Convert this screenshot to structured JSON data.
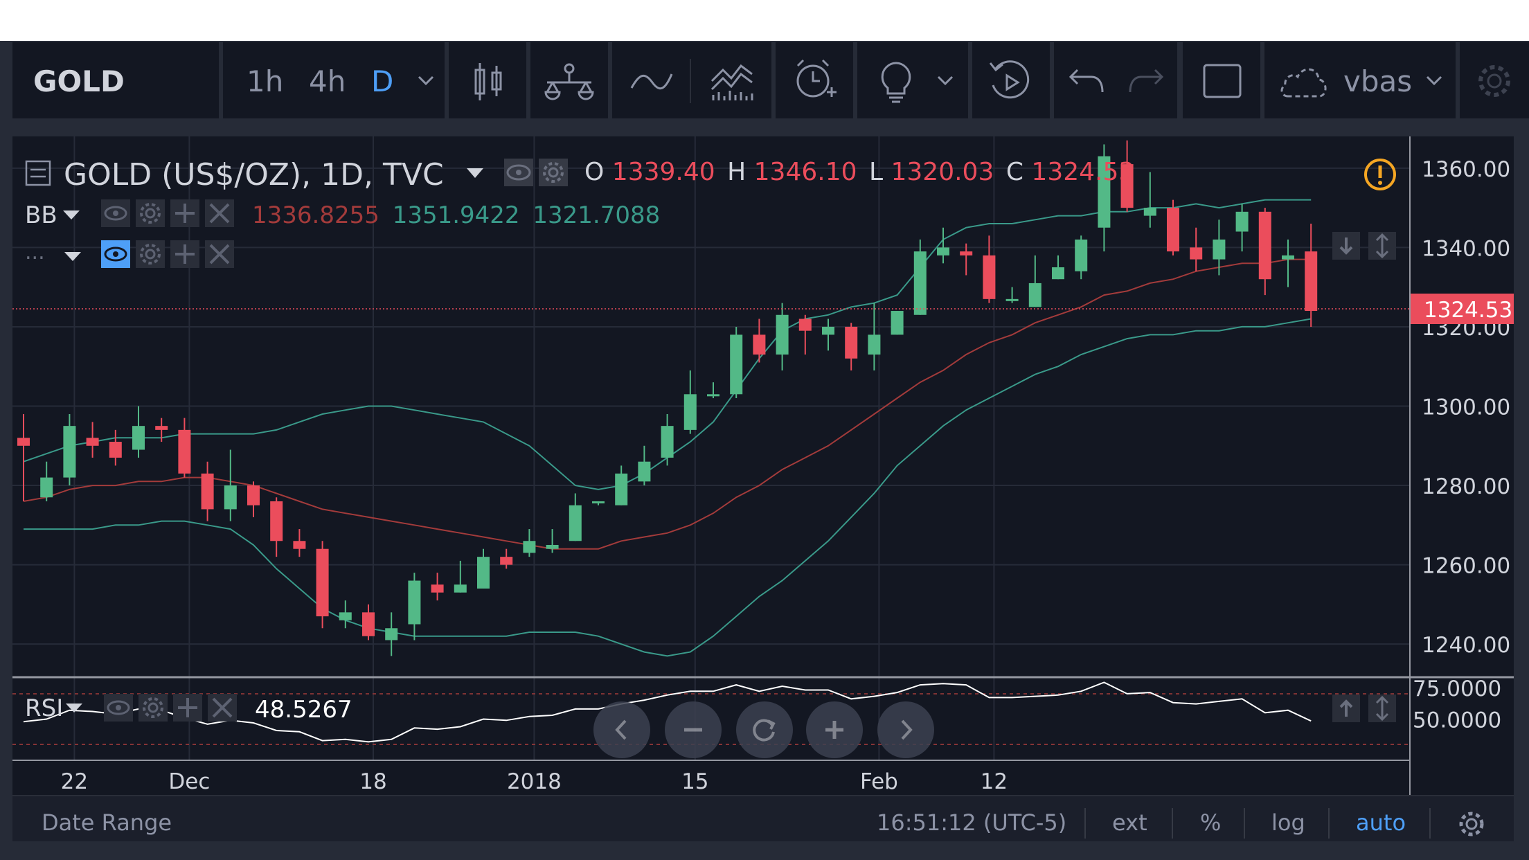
{
  "toolbar": {
    "symbol": "GOLD",
    "intervals": [
      "1h",
      "4h",
      "D"
    ],
    "active_interval": "D",
    "layout_name": "vbas",
    "icons": [
      "chevron-down-icon",
      "candles-icon",
      "compare-icon",
      "indicators-icon",
      "templates-icon",
      "alert-icon",
      "idea-icon",
      "replay-icon",
      "undo-icon",
      "redo-icon",
      "fullscreen-icon",
      "cloud-icon",
      "gear-icon"
    ]
  },
  "legend": {
    "title": "GOLD (US$/OZ), 1D, TVC",
    "ohlc": {
      "o_label": "O",
      "o": "1339.40",
      "h_label": "H",
      "h": "1346.10",
      "l_label": "L",
      "l": "1320.03",
      "c_label": "C",
      "c": "1324.53"
    },
    "bb_label": "BB",
    "bb_values": [
      "1336.8255",
      "1351.9422",
      "1321.7088"
    ],
    "dots": "...",
    "rsi_label": "RSI",
    "rsi_value": "48.5267"
  },
  "price_axis": {
    "ticks": [
      "1360.00",
      "1340.00",
      "1320.00",
      "1300.00",
      "1280.00",
      "1260.00",
      "1240.00"
    ],
    "last_price": "1324.53"
  },
  "rsi_axis": {
    "ticks": [
      "75.0000",
      "50.0000"
    ]
  },
  "time_axis": {
    "labels": [
      "22",
      "Dec",
      "18",
      "2018",
      "15",
      "Feb",
      "12"
    ]
  },
  "status_bar": {
    "date_range": "Date Range",
    "time": "16:51:12",
    "timezone": "(UTC-5)",
    "ext": "ext",
    "percent": "%",
    "log": "log",
    "auto": "auto"
  },
  "colors": {
    "up": "#53b987",
    "down": "#eb4d5c",
    "bg": "#131722",
    "accent": "#4e9ff7",
    "orange": "#f5a623"
  },
  "chart_data": {
    "type": "candlestick",
    "title": "GOLD (US$/OZ), 1D, TVC",
    "ylim": [
      1232,
      1368
    ],
    "candles": [
      [
        1292,
        1290,
        1298,
        1276
      ],
      [
        1277,
        1282,
        1286,
        1276
      ],
      [
        1282,
        1295,
        1298,
        1280
      ],
      [
        1292,
        1290,
        1296,
        1287
      ],
      [
        1291,
        1287,
        1294,
        1285
      ],
      [
        1289,
        1295,
        1300,
        1287
      ],
      [
        1295,
        1294,
        1297,
        1291
      ],
      [
        1294,
        1283,
        1297,
        1282
      ],
      [
        1283,
        1274,
        1286,
        1271
      ],
      [
        1274,
        1280,
        1289,
        1271
      ],
      [
        1280,
        1275,
        1281,
        1272
      ],
      [
        1276,
        1266,
        1277,
        1262
      ],
      [
        1266,
        1264,
        1269,
        1262
      ],
      [
        1264,
        1247,
        1266,
        1244
      ],
      [
        1246,
        1248,
        1251,
        1244
      ],
      [
        1248,
        1242,
        1250,
        1241
      ],
      [
        1241,
        1244,
        1248,
        1237
      ],
      [
        1245,
        1256,
        1258,
        1241
      ],
      [
        1255,
        1253,
        1258,
        1251
      ],
      [
        1253,
        1255,
        1261,
        1253
      ],
      [
        1254,
        1262,
        1264,
        1254
      ],
      [
        1262,
        1260,
        1264,
        1259
      ],
      [
        1263,
        1266,
        1269,
        1262
      ],
      [
        1264,
        1265,
        1269,
        1263
      ],
      [
        1266,
        1275,
        1278,
        1266
      ],
      [
        1276,
        1276,
        1276,
        1275
      ],
      [
        1275,
        1283,
        1285,
        1275
      ],
      [
        1281,
        1286,
        1290,
        1280
      ],
      [
        1287,
        1295,
        1298,
        1285
      ],
      [
        1294,
        1303,
        1309,
        1293
      ],
      [
        1303,
        1303,
        1306,
        1302
      ],
      [
        1303,
        1318,
        1320,
        1302
      ],
      [
        1318,
        1313,
        1322,
        1311
      ],
      [
        1313,
        1323,
        1326,
        1309
      ],
      [
        1322,
        1319,
        1323,
        1313
      ],
      [
        1318,
        1320,
        1322,
        1314
      ],
      [
        1320,
        1312,
        1321,
        1309
      ],
      [
        1313,
        1318,
        1326,
        1309
      ],
      [
        1318,
        1324,
        1324,
        1318
      ],
      [
        1323,
        1339,
        1342,
        1323
      ],
      [
        1338,
        1340,
        1345,
        1336
      ],
      [
        1339,
        1338,
        1341,
        1333
      ],
      [
        1338,
        1327,
        1343,
        1326
      ],
      [
        1327,
        1327,
        1330,
        1326
      ],
      [
        1325,
        1331,
        1338,
        1325
      ],
      [
        1332,
        1335,
        1338,
        1332
      ],
      [
        1334,
        1342,
        1343,
        1332
      ],
      [
        1345,
        1363,
        1366,
        1339
      ],
      [
        1361,
        1350,
        1367,
        1349
      ],
      [
        1348,
        1350,
        1359,
        1345
      ],
      [
        1350,
        1339,
        1352,
        1338
      ],
      [
        1340,
        1337,
        1345,
        1334
      ],
      [
        1337,
        1342,
        1347,
        1333
      ],
      [
        1344,
        1349,
        1351,
        1339
      ],
      [
        1349,
        1332,
        1350,
        1328
      ],
      [
        1337,
        1338,
        1342,
        1330
      ],
      [
        1339,
        1324,
        1346,
        1320
      ]
    ],
    "bb_upper": [
      1286,
      1288,
      1290,
      1291,
      1292,
      1292,
      1292,
      1293,
      1293,
      1293,
      1293,
      1294,
      1296,
      1298,
      1299,
      1300,
      1300,
      1299,
      1298,
      1297,
      1296,
      1293,
      1290,
      1285,
      1280,
      1279,
      1280,
      1283,
      1287,
      1291,
      1296,
      1304,
      1312,
      1319,
      1322,
      1323,
      1325,
      1326,
      1328,
      1335,
      1342,
      1345,
      1346,
      1346,
      1347,
      1348,
      1348,
      1349,
      1349,
      1350,
      1350,
      1351,
      1350,
      1351,
      1352,
      1352,
      1352
    ],
    "bb_middle": [
      1276,
      1277,
      1279,
      1280,
      1280,
      1281,
      1281,
      1282,
      1282,
      1281,
      1280,
      1278,
      1276,
      1274,
      1273,
      1272,
      1271,
      1270,
      1269,
      1268,
      1267,
      1266,
      1265,
      1264,
      1264,
      1264,
      1266,
      1267,
      1268,
      1270,
      1273,
      1277,
      1280,
      1284,
      1287,
      1290,
      1294,
      1298,
      1302,
      1306,
      1309,
      1313,
      1316,
      1318,
      1321,
      1323,
      1325,
      1328,
      1329,
      1331,
      1332,
      1334,
      1335,
      1336,
      1336,
      1337,
      1337
    ],
    "bb_lower": [
      1269,
      1269,
      1269,
      1269,
      1270,
      1270,
      1271,
      1271,
      1270,
      1269,
      1265,
      1259,
      1254,
      1249,
      1246,
      1244,
      1243,
      1242,
      1242,
      1242,
      1242,
      1242,
      1243,
      1243,
      1243,
      1242,
      1240,
      1238,
      1237,
      1238,
      1242,
      1247,
      1252,
      1256,
      1261,
      1266,
      1272,
      1278,
      1285,
      1290,
      1295,
      1299,
      1302,
      1305,
      1308,
      1310,
      1313,
      1315,
      1317,
      1318,
      1318,
      1319,
      1319,
      1320,
      1320,
      1321,
      1322
    ],
    "rsi": [
      48,
      50,
      57,
      56,
      54,
      58,
      57,
      51,
      46,
      49,
      47,
      41,
      40,
      33,
      34,
      32,
      34,
      43,
      42,
      44,
      50,
      49,
      52,
      53,
      58,
      58,
      62,
      65,
      69,
      72,
      72,
      77,
      72,
      76,
      73,
      73,
      66,
      68,
      71,
      77,
      78,
      77,
      67,
      67,
      68,
      69,
      72,
      79,
      70,
      71,
      63,
      62,
      64,
      66,
      55,
      57,
      48.5267
    ],
    "rsi_ylim": [
      18,
      82
    ],
    "rsi_levels": [
      70,
      30
    ]
  }
}
